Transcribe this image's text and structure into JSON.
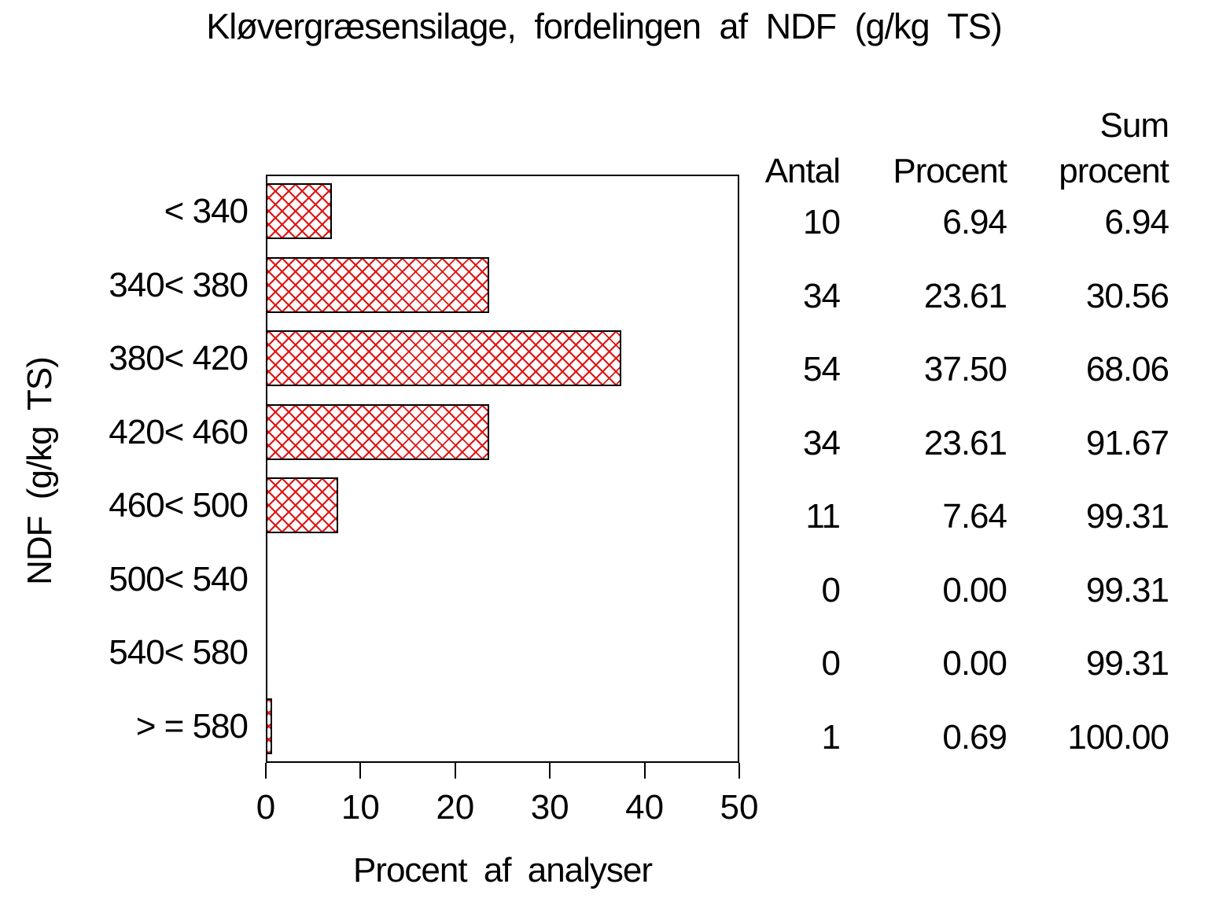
{
  "chart_data": {
    "type": "bar",
    "orientation": "horizontal",
    "title": "Kløvergræsensilage, fordelingen af NDF (g/kg TS)",
    "xlabel": "Procent af analyser",
    "ylabel": "NDF (g/kg TS)",
    "categories": [
      "< 340",
      "340< 380",
      "380< 420",
      "420< 460",
      "460< 500",
      "500< 540",
      "540< 580",
      "> = 580"
    ],
    "values": [
      6.94,
      23.61,
      37.5,
      23.61,
      7.64,
      0.0,
      0.0,
      0.69
    ],
    "xlim": [
      0,
      50
    ],
    "xticks": [
      0,
      10,
      20,
      30,
      40,
      50
    ],
    "grid": false,
    "bar_fill": "#ffffff",
    "bar_hatch_color": "#e01414",
    "bar_border_color": "#000000",
    "frame_color": "#000000"
  },
  "table": {
    "headers": {
      "antal": "Antal",
      "procent": "Procent",
      "sum_line1": "Sum",
      "sum_line2": "procent"
    },
    "rows": [
      {
        "antal": "10",
        "procent": "6.94",
        "sum": "6.94"
      },
      {
        "antal": "34",
        "procent": "23.61",
        "sum": "30.56"
      },
      {
        "antal": "54",
        "procent": "37.50",
        "sum": "68.06"
      },
      {
        "antal": "34",
        "procent": "23.61",
        "sum": "91.67"
      },
      {
        "antal": "11",
        "procent": "7.64",
        "sum": "99.31"
      },
      {
        "antal": "0",
        "procent": "0.00",
        "sum": "99.31"
      },
      {
        "antal": "0",
        "procent": "0.00",
        "sum": "99.31"
      },
      {
        "antal": "1",
        "procent": "0.69",
        "sum": "100.00"
      }
    ]
  }
}
